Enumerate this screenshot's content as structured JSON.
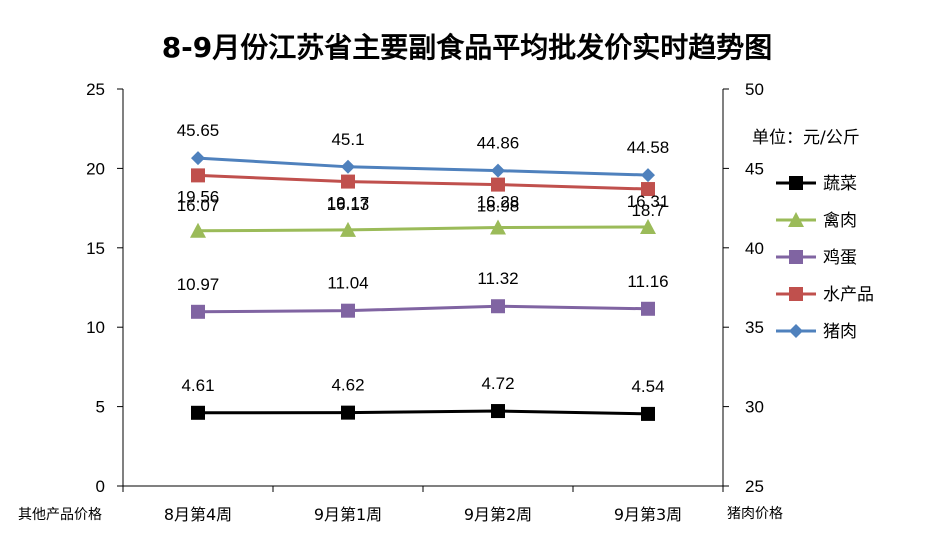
{
  "chart_data": {
    "type": "line",
    "title": "8-9月份江苏省主要副食品平均批发价实时趋势图",
    "categories": [
      "8月第4周",
      "9月第1周",
      "9月第2周",
      "9月第3周"
    ],
    "left_axis": {
      "label": "其他产品价格",
      "ylim": [
        0,
        25
      ],
      "ticks": [
        "0",
        "5",
        "10",
        "15",
        "20",
        "25"
      ]
    },
    "right_axis": {
      "label": "猪肉价格",
      "ylim": [
        25,
        50
      ],
      "ticks": [
        "25",
        "30",
        "35",
        "40",
        "45",
        "50"
      ]
    },
    "unit": "单位：元/公斤",
    "grid": false,
    "legend_position": "right",
    "series": [
      {
        "name": "蔬菜",
        "axis": "left",
        "color": "#000000",
        "marker": "square",
        "values": [
          4.61,
          4.62,
          4.72,
          4.54
        ],
        "labels": [
          "4.61",
          "4.62",
          "4.72",
          "4.54"
        ]
      },
      {
        "name": "禽肉",
        "axis": "left",
        "color": "#9BBB59",
        "marker": "triangle",
        "values": [
          16.07,
          16.13,
          16.28,
          16.31
        ],
        "labels": [
          "16.07",
          "16.13",
          "16.28",
          "16.31"
        ]
      },
      {
        "name": "鸡蛋",
        "axis": "left",
        "color": "#8064A2",
        "marker": "square",
        "values": [
          10.97,
          11.04,
          11.32,
          11.16
        ],
        "labels": [
          "10.97",
          "11.04",
          "11.32",
          "11.16"
        ]
      },
      {
        "name": "水产品",
        "axis": "left",
        "color": "#C0504D",
        "marker": "square",
        "values": [
          19.56,
          19.17,
          18.98,
          18.7
        ],
        "labels": [
          "19.56",
          "19.17",
          "18.98",
          "18.7"
        ]
      },
      {
        "name": "猪肉",
        "axis": "right",
        "color": "#4F81BD",
        "marker": "diamond",
        "values": [
          45.65,
          45.1,
          44.86,
          44.58
        ],
        "labels": [
          "45.65",
          "45.1",
          "44.86",
          "44.58"
        ]
      }
    ]
  }
}
